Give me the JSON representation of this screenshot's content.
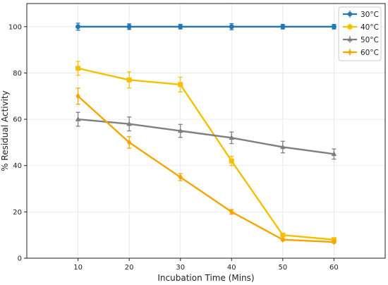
{
  "chart_data": {
    "type": "line",
    "xlabel": "Incubation Time (Mins)",
    "ylabel": "% Residual Activity",
    "x": [
      10,
      20,
      30,
      40,
      50,
      60
    ],
    "xlim": [
      0,
      70
    ],
    "ylim": [
      0,
      110
    ],
    "xticks": [
      10,
      20,
      30,
      40,
      50,
      60
    ],
    "yticks": [
      0,
      20,
      40,
      60,
      80,
      100
    ],
    "grid": true,
    "legend": "top-right",
    "series": [
      {
        "name": "30°C",
        "color": "#1f77b4",
        "marker": "circle",
        "values": [
          100,
          100,
          100,
          100,
          100,
          100
        ],
        "errors": [
          1.5,
          1.2,
          1.0,
          1.3,
          1.0,
          1.0
        ]
      },
      {
        "name": "40°C",
        "color": "#f5c000",
        "marker": "square",
        "values": [
          82,
          77,
          75,
          42,
          10,
          8
        ],
        "errors": [
          3,
          3.5,
          3.2,
          2,
          0.8,
          0.6
        ]
      },
      {
        "name": "50°C",
        "color": "#7f7f7f",
        "marker": "triangle",
        "values": [
          60,
          58,
          55,
          52,
          48,
          45
        ],
        "errors": [
          3,
          3,
          2.8,
          2.5,
          2.5,
          2.2
        ]
      },
      {
        "name": "60°C",
        "color": "#f5a500",
        "marker": "diamond",
        "values": [
          70,
          50,
          35,
          20,
          8,
          7
        ],
        "errors": [
          3.5,
          2.5,
          1.5,
          1.0,
          0.5,
          0.5
        ]
      }
    ]
  }
}
